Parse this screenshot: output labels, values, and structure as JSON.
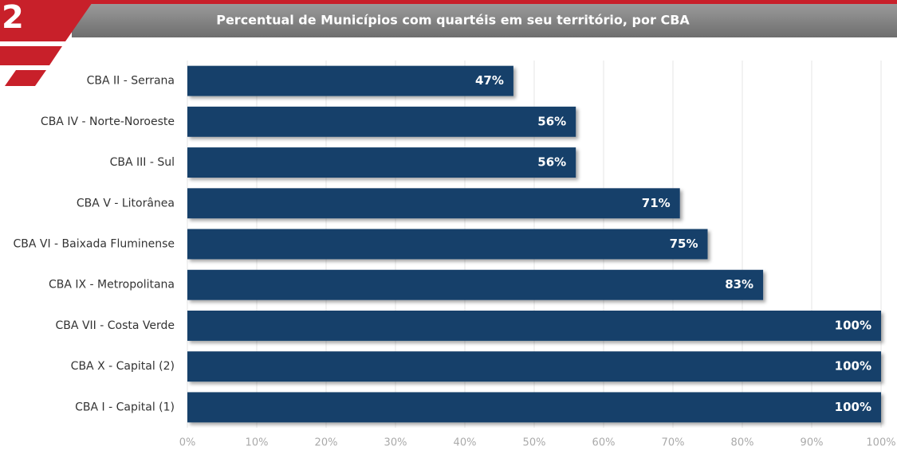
{
  "badge": "2",
  "chart_data": {
    "type": "hbar",
    "title": "Percentual de Municípios com quartéis em seu território, por CBA",
    "categories": [
      "CBA II - Serrana",
      "CBA IV - Norte-Noroeste",
      "CBA III - Sul",
      "CBA V - Litorânea",
      "CBA VI - Baixada Fluminense",
      "CBA IX - Metropolitana",
      "CBA VII - Costa Verde",
      "CBA X - Capital (2)",
      "CBA I - Capital (1)"
    ],
    "values": [
      47,
      56,
      56,
      71,
      75,
      83,
      100,
      100,
      100
    ],
    "value_labels": [
      "47%",
      "56%",
      "56%",
      "71%",
      "75%",
      "83%",
      "100%",
      "100%",
      "100%"
    ],
    "color": "#123f6b",
    "xlim": [
      0,
      100
    ],
    "xticks": [
      {
        "value": 0,
        "label": "0%"
      },
      {
        "value": 10,
        "label": "10%"
      },
      {
        "value": 20,
        "label": "20%"
      },
      {
        "value": 30,
        "label": "30%"
      },
      {
        "value": 40,
        "label": "40%"
      },
      {
        "value": 50,
        "label": "50%"
      },
      {
        "value": 60,
        "label": "60%"
      },
      {
        "value": 70,
        "label": "70%"
      },
      {
        "value": 80,
        "label": "80%"
      },
      {
        "value": 90,
        "label": "90%"
      },
      {
        "value": 100,
        "label": "100%"
      }
    ],
    "grid": true
  }
}
